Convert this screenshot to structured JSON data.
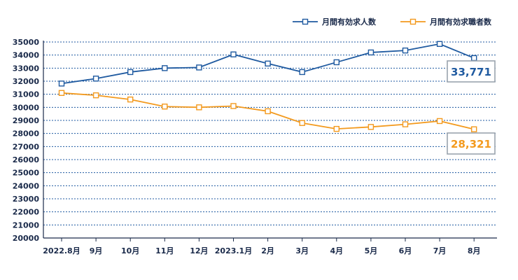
{
  "chart_data": {
    "type": "line",
    "categories": [
      "2022.8月",
      "9月",
      "10月",
      "11月",
      "12月",
      "2023.1月",
      "2月",
      "3月",
      "4月",
      "5月",
      "6月",
      "7月",
      "8月"
    ],
    "series": [
      {
        "name": "月間有効求人数",
        "color": "#1f5aa0",
        "values": [
          31820,
          32200,
          32700,
          33000,
          33050,
          34050,
          33350,
          32700,
          33450,
          34200,
          34350,
          34850,
          33771
        ]
      },
      {
        "name": "月間有効求職者数",
        "color": "#f39a1e",
        "values": [
          31100,
          30920,
          30600,
          30060,
          30000,
          30100,
          29700,
          28800,
          28350,
          28500,
          28700,
          28950,
          28321
        ]
      }
    ],
    "callouts": [
      {
        "series": 0,
        "label": "33,771"
      },
      {
        "series": 1,
        "label": "28,321"
      }
    ],
    "yticks": [
      "35000",
      "34000",
      "33000",
      "32000",
      "31000",
      "30000",
      "29000",
      "28000",
      "27000",
      "26000",
      "25000",
      "24000",
      "23000",
      "22000",
      "21000",
      "20000"
    ],
    "ylim": [
      20000,
      35000
    ],
    "grid": true,
    "legend_position": "top-right",
    "title": "",
    "xlabel": "",
    "ylabel": ""
  }
}
